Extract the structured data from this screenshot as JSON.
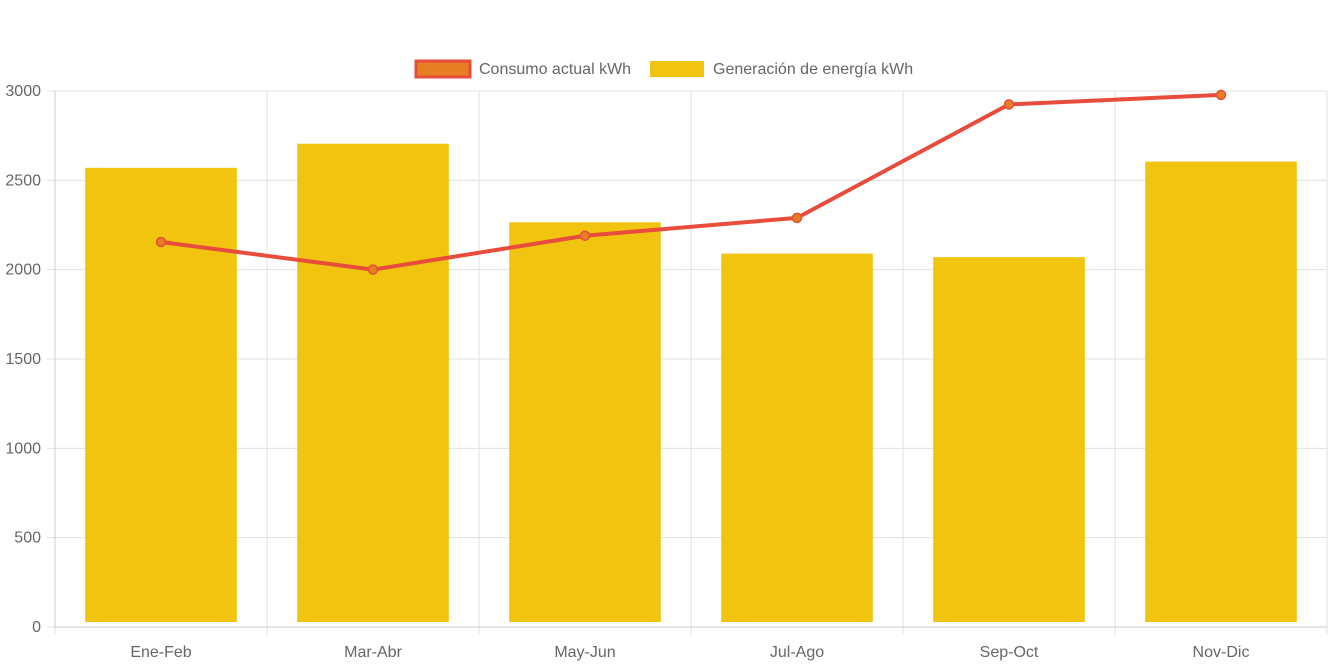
{
  "chart_data": {
    "type": "bar",
    "categories": [
      "Ene-Feb",
      "Mar-Abr",
      "May-Jun",
      "Jul-Ago",
      "Sep-Oct",
      "Nov-Dic"
    ],
    "series": [
      {
        "name": "Consumo actual kWh",
        "type": "line",
        "values": [
          2155,
          2000,
          2190,
          2290,
          2925,
          2978
        ],
        "color": "#e74c3c",
        "point_color": "#e67e22"
      },
      {
        "name": "Generación de energía kWh",
        "type": "bar",
        "values": [
          2570,
          2705,
          2265,
          2090,
          2070,
          2605
        ],
        "color": "#f1c40f"
      }
    ],
    "title": "",
    "xlabel": "",
    "ylabel": "",
    "ylim": [
      0,
      3000
    ],
    "yticks": [
      "0",
      "500",
      "1000",
      "1500",
      "2000",
      "2500",
      "3000"
    ],
    "grid": true,
    "legend_position": "top"
  }
}
